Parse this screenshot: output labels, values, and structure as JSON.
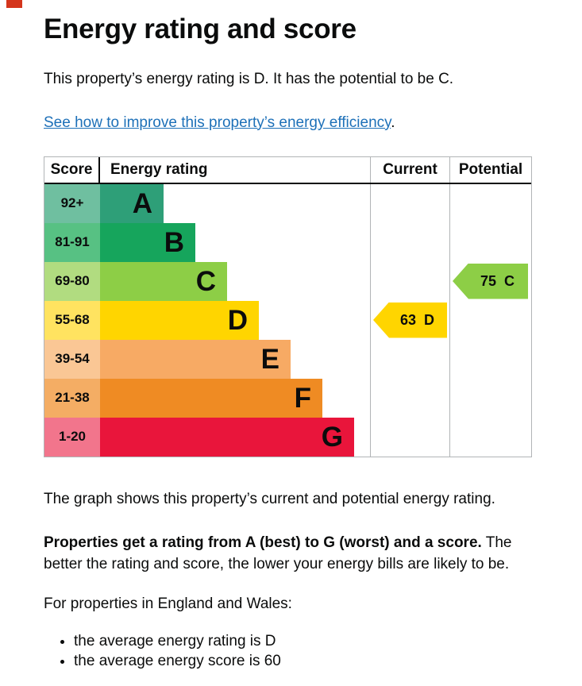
{
  "page": {
    "title": "Energy rating and score",
    "intro": "This property’s energy rating is D. It has the potential to be C.",
    "improve_link": "See how to improve this property’s energy efficiency",
    "improve_link_suffix": ".",
    "graph_caption": "The graph shows this property’s current and potential energy rating.",
    "ratings_explainer_bold": "Properties get a rating from A (best) to G (worst) and a score.",
    "ratings_explainer_rest": " The better the rating and score, the lower your energy bills are likely to be.",
    "regions_line": "For properties in England and Wales:",
    "bullets": {
      "rating": "the average energy rating is D",
      "score": "the average energy score is 60"
    }
  },
  "colors": {
    "text": "#0b0c0c",
    "link": "#1d70b8",
    "table_border": "#b1b4b6",
    "top_marker": "#d4351c"
  },
  "chart_data": {
    "type": "bar",
    "title": "Energy rating",
    "headers": {
      "score": "Score",
      "rating": "Energy rating",
      "current": "Current",
      "potential": "Potential"
    },
    "bands": [
      {
        "score": "92+",
        "letter": "A",
        "color": "#2e9f78",
        "tint": "#6fbfa0"
      },
      {
        "score": "81-91",
        "letter": "B",
        "color": "#16a55c",
        "tint": "#57c183"
      },
      {
        "score": "69-80",
        "letter": "C",
        "color": "#8dce46",
        "tint": "#b1dc80"
      },
      {
        "score": "55-68",
        "letter": "D",
        "color": "#ffd500",
        "tint": "#ffe360"
      },
      {
        "score": "39-54",
        "letter": "E",
        "color": "#f7aa64",
        "tint": "#fac795"
      },
      {
        "score": "21-38",
        "letter": "F",
        "color": "#ef8b23",
        "tint": "#f4ad64"
      },
      {
        "score": "1-20",
        "letter": "G",
        "color": "#e9153b",
        "tint": "#f2758c"
      }
    ],
    "current": {
      "score": 63,
      "letter": "D",
      "color": "#ffd500",
      "band": "D"
    },
    "potential": {
      "score": 75,
      "letter": "C",
      "color": "#8dce46",
      "band": "C"
    }
  }
}
